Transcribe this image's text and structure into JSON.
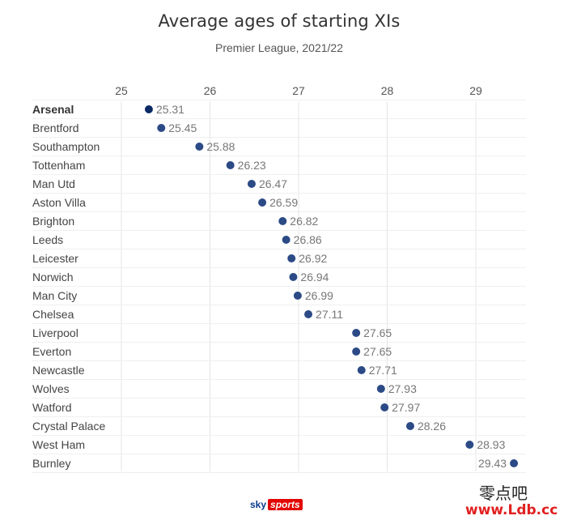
{
  "title": "Average ages of starting XIs",
  "subtitle": "Premier League, 2021/22",
  "chart_data": {
    "type": "scatter",
    "title": "Average ages of starting XIs",
    "subtitle": "Premier League, 2021/22",
    "xlim": [
      25,
      29.5
    ],
    "xticks": [
      25,
      26,
      27,
      28,
      29
    ],
    "grid": true,
    "categories": [
      "Arsenal",
      "Brentford",
      "Southampton",
      "Tottenham",
      "Man Utd",
      "Aston Villa",
      "Brighton",
      "Leeds",
      "Leicester",
      "Norwich",
      "Man City",
      "Chelsea",
      "Liverpool",
      "Everton",
      "Newcastle",
      "Wolves",
      "Watford",
      "Crystal Palace",
      "West Ham",
      "Burnley"
    ],
    "values": [
      25.31,
      25.45,
      25.88,
      26.23,
      26.47,
      26.59,
      26.82,
      26.86,
      26.92,
      26.94,
      26.99,
      27.11,
      27.65,
      27.65,
      27.71,
      27.93,
      27.97,
      28.26,
      28.93,
      29.43
    ],
    "value_labels": [
      "25.31",
      "25.45",
      "25.88",
      "26.23",
      "26.47",
      "26.59",
      "26.82",
      "26.86",
      "26.92",
      "26.94",
      "26.99",
      "27.11",
      "27.65",
      "27.65",
      "27.71",
      "27.93",
      "27.97",
      "28.26",
      "28.93",
      "29.43"
    ],
    "highlight": "Arsenal",
    "colors": {
      "point": "#2b4a86",
      "highlight_point": "#0b2a66",
      "grid": "#e4e4e4",
      "label": "#444444",
      "value_label": "#777777"
    }
  },
  "branding": {
    "sky": "sky",
    "sports": "sports"
  },
  "watermark": {
    "chinese": "零点吧",
    "url": "www.Ldb.cc"
  }
}
